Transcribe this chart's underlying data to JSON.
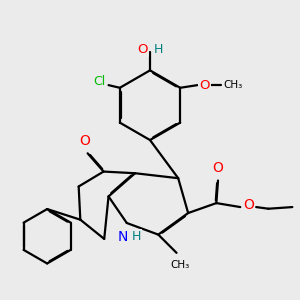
{
  "background_color": "#ebebeb",
  "atom_colors": {
    "C": "#000000",
    "H": "#008080",
    "O": "#ff0000",
    "N": "#0000ff",
    "Cl": "#00bb00"
  },
  "bond_color": "#000000",
  "bond_width": 1.6,
  "figsize": [
    3.0,
    3.0
  ],
  "dpi": 100
}
